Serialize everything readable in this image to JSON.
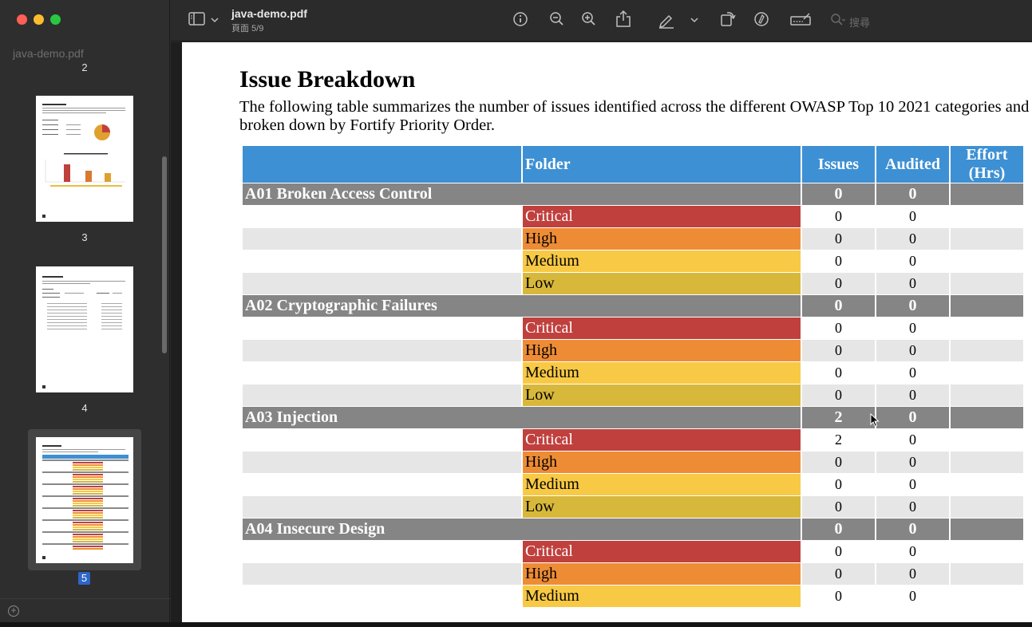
{
  "window": {
    "title": "java-demo.pdf",
    "subtitle": "頁面 5/9"
  },
  "sidebar": {
    "title": "java-demo.pdf",
    "pages": [
      "2",
      "3",
      "4",
      "5"
    ],
    "selected_page": "5"
  },
  "toolbar": {
    "search_placeholder": "搜尋",
    "icons": [
      "sidebar-toggle-icon",
      "chevron-down-icon",
      "info-icon",
      "zoom-out-icon",
      "zoom-in-icon",
      "share-icon",
      "highlight-icon",
      "chevron-down-icon",
      "rotate-icon",
      "markup-icon",
      "form-fill-icon",
      "search-icon"
    ]
  },
  "document": {
    "heading": "Issue Breakdown",
    "intro": "The following table summarizes the number of issues identified across the different OWASP Top 10 2021 categories and broken down by Fortify Priority Order.",
    "columns": [
      "",
      "Folder",
      "Issues",
      "Audited",
      "Effort (Hrs)"
    ],
    "categories": [
      {
        "name": "A01 Broken Access Control",
        "issues": "0",
        "audited": "0",
        "rows": [
          {
            "folder": "Critical",
            "issues": "0",
            "audited": "0"
          },
          {
            "folder": "High",
            "issues": "0",
            "audited": "0"
          },
          {
            "folder": "Medium",
            "issues": "0",
            "audited": "0"
          },
          {
            "folder": "Low",
            "issues": "0",
            "audited": "0"
          }
        ]
      },
      {
        "name": "A02 Cryptographic Failures",
        "issues": "0",
        "audited": "0",
        "rows": [
          {
            "folder": "Critical",
            "issues": "0",
            "audited": "0"
          },
          {
            "folder": "High",
            "issues": "0",
            "audited": "0"
          },
          {
            "folder": "Medium",
            "issues": "0",
            "audited": "0"
          },
          {
            "folder": "Low",
            "issues": "0",
            "audited": "0"
          }
        ]
      },
      {
        "name": "A03 Injection",
        "issues": "2",
        "audited": "0",
        "rows": [
          {
            "folder": "Critical",
            "issues": "2",
            "audited": "0"
          },
          {
            "folder": "High",
            "issues": "0",
            "audited": "0"
          },
          {
            "folder": "Medium",
            "issues": "0",
            "audited": "0"
          },
          {
            "folder": "Low",
            "issues": "0",
            "audited": "0"
          }
        ]
      },
      {
        "name": "A04 Insecure Design",
        "issues": "0",
        "audited": "0",
        "rows": [
          {
            "folder": "Critical",
            "issues": "0",
            "audited": "0"
          },
          {
            "folder": "High",
            "issues": "0",
            "audited": "0"
          },
          {
            "folder": "Medium",
            "issues": "0",
            "audited": "0"
          }
        ]
      }
    ]
  },
  "colors": {
    "header_blue": "#3d90d4",
    "category_gray": "#858585",
    "critical": "#c0403d",
    "high": "#ee8c35",
    "medium": "#f8c945",
    "low": "#d8b83b",
    "selection_blue": "#2d65c8"
  }
}
